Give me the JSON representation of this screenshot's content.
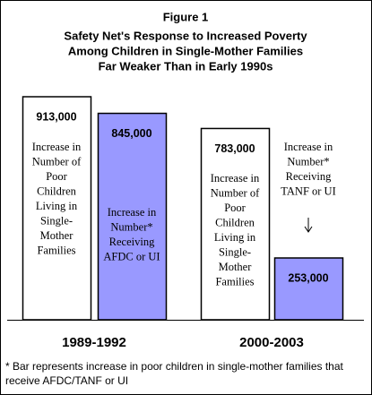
{
  "chart_data": {
    "type": "bar",
    "title": [
      "Figure 1",
      "Safety Net's Response to Increased Poverty",
      "Among Children in Single-Mother Families",
      "Far Weaker Than in Early 1990s"
    ],
    "categories": [
      "1989-1992",
      "2000-2003"
    ],
    "series": [
      {
        "color": "#ffffff",
        "values": [
          913000,
          783000
        ],
        "value_labels": [
          "913,000",
          "783,000"
        ],
        "labels": [
          [
            "Increase in",
            "Number of",
            "Poor",
            "Children",
            "Living in",
            "Single-",
            "Mother",
            "Families"
          ],
          [
            "Increase in",
            "Number of",
            "Poor",
            "Children",
            "Living in",
            "Single-",
            "Mother",
            "Families"
          ]
        ]
      },
      {
        "color": "#9999ff",
        "values": [
          845000,
          253000
        ],
        "value_labels": [
          "845,000",
          "253,000"
        ],
        "labels": [
          [
            "Increase in",
            "Number*",
            "Receiving",
            "AFDC or UI"
          ],
          [
            "Increase in",
            "Number*",
            "Receiving",
            "TANF or UI"
          ]
        ]
      }
    ],
    "footnote": [
      "* Bar represents increase in poor children in single-mother families that",
      "receive AFDC/TANF or UI"
    ]
  }
}
